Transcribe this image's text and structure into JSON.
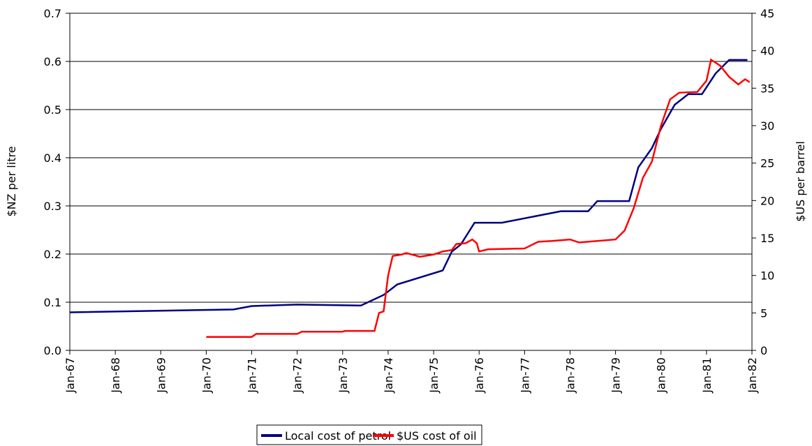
{
  "chart_data": {
    "type": "line",
    "y_label": "$NZ per litre",
    "y2_label": "$US per barrel",
    "xlim": [
      1967,
      1982
    ],
    "xticks": [
      {
        "value": 1967,
        "label": "Jan-67"
      },
      {
        "value": 1968,
        "label": "Jan-68"
      },
      {
        "value": 1969,
        "label": "Jan-69"
      },
      {
        "value": 1970,
        "label": "Jan-70"
      },
      {
        "value": 1971,
        "label": "Jan-71"
      },
      {
        "value": 1972,
        "label": "Jan-72"
      },
      {
        "value": 1973,
        "label": "Jan-73"
      },
      {
        "value": 1974,
        "label": "Jan-74"
      },
      {
        "value": 1975,
        "label": "Jan-75"
      },
      {
        "value": 1976,
        "label": "Jan-76"
      },
      {
        "value": 1977,
        "label": "Jan-77"
      },
      {
        "value": 1978,
        "label": "Jan-78"
      },
      {
        "value": 1979,
        "label": "Jan-79"
      },
      {
        "value": 1980,
        "label": "Jan-80"
      },
      {
        "value": 1981,
        "label": "Jan-81"
      },
      {
        "value": 1982,
        "label": "Jan-82"
      }
    ],
    "ylim": [
      0,
      0.7
    ],
    "yticks": [
      {
        "value": 0,
        "label": "0.0"
      },
      0.1,
      0.2,
      0.3,
      0.4,
      0.5,
      0.6,
      0.7
    ],
    "y2lim": [
      0,
      45
    ],
    "y2ticks": [
      0,
      5,
      10,
      15,
      20,
      25,
      30,
      35,
      40,
      45
    ],
    "grid": true,
    "legend": "bottom",
    "series": [
      {
        "name": "Local cost of petrol",
        "color": "#000080",
        "x": [
          1967.0,
          1970.6,
          1971.0,
          1972.0,
          1973.4,
          1973.9,
          1974.2,
          1975.2,
          1975.4,
          1975.6,
          1975.9,
          1976.5,
          1977.8,
          1978.4,
          1978.6,
          1979.3,
          1979.5,
          1979.8,
          1980.0,
          1980.3,
          1980.6,
          1980.9,
          1981.2,
          1981.5,
          1981.9
        ],
        "values": [
          0.079,
          0.085,
          0.092,
          0.095,
          0.093,
          0.115,
          0.137,
          0.166,
          0.205,
          0.22,
          0.265,
          0.265,
          0.289,
          0.289,
          0.31,
          0.31,
          0.38,
          0.42,
          0.46,
          0.51,
          0.532,
          0.532,
          0.575,
          0.603,
          0.603
        ]
      },
      {
        "name": "$US cost of oil",
        "color": "#ff0000",
        "axis": "y2",
        "x": [
          1970.0,
          1971.0,
          1971.1,
          1972.0,
          1972.1,
          1973.0,
          1973.05,
          1973.7,
          1973.8,
          1973.9,
          1974.0,
          1974.1,
          1974.3,
          1974.4,
          1974.7,
          1975.0,
          1975.2,
          1975.4,
          1975.5,
          1975.7,
          1975.85,
          1975.95,
          1976.0,
          1976.2,
          1977.0,
          1977.3,
          1977.6,
          1978.0,
          1978.2,
          1979.0,
          1979.2,
          1979.4,
          1979.6,
          1979.8,
          1980.0,
          1980.2,
          1980.4,
          1980.8,
          1981.0,
          1981.1,
          1981.3,
          1981.5,
          1981.7,
          1981.85,
          1981.95
        ],
        "values": [
          1.8,
          1.8,
          2.2,
          2.2,
          2.5,
          2.5,
          2.6,
          2.6,
          5.0,
          5.2,
          10,
          12.6,
          12.8,
          13.0,
          12.5,
          12.8,
          13.2,
          13.4,
          14.2,
          14.3,
          14.8,
          14.3,
          13.2,
          13.5,
          13.6,
          14.5,
          14.6,
          14.8,
          14.4,
          14.8,
          16,
          19,
          23,
          25.2,
          30,
          33.5,
          34.4,
          34.5,
          36,
          38.8,
          38,
          36.5,
          35.5,
          36.2,
          35.8
        ]
      }
    ]
  }
}
